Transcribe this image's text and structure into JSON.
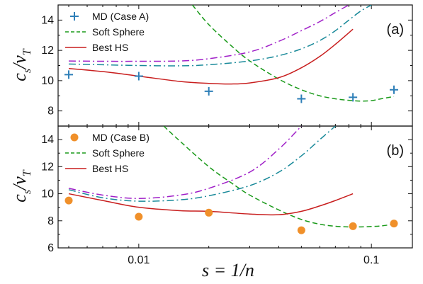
{
  "colors": {
    "md_a": "#2e7fb8",
    "md_b": "#f0902a",
    "soft_sphere": "#1a9a1a",
    "best_hs": "#c81e1e",
    "purple_dashdot": "#a020c8",
    "teal_dashdot": "#1a8a9a"
  },
  "chart_data": [
    {
      "type": "line",
      "panel_label": "(a)",
      "xscale": "log",
      "xlim": [
        0.0045,
        0.15
      ],
      "ylim": [
        7,
        15
      ],
      "yticks": [
        8,
        10,
        12,
        14
      ],
      "grid": false,
      "legend_position": "top-left",
      "ylabel_main": "c",
      "ylabel_sub1": "s",
      "ylabel_mid": "/v",
      "ylabel_sub2": "T",
      "series": [
        {
          "name": "MD (Case A)",
          "style": "plus",
          "color_key": "md_a",
          "x": [
            0.005,
            0.01,
            0.02,
            0.05,
            0.0833,
            0.125
          ],
          "y": [
            10.4,
            10.3,
            9.3,
            8.8,
            8.9,
            9.4
          ]
        },
        {
          "name": "Soft Sphere",
          "style": "dashed",
          "color_key": "soft_sphere",
          "x": [
            0.017,
            0.02,
            0.025,
            0.03,
            0.04,
            0.05,
            0.06,
            0.07,
            0.08,
            0.09,
            0.1,
            0.11,
            0.125
          ],
          "y": [
            15.0,
            13.7,
            12.3,
            11.3,
            10.1,
            9.4,
            9.0,
            8.8,
            8.7,
            8.65,
            8.68,
            8.8,
            8.95
          ]
        },
        {
          "name": "Best HS",
          "style": "solid",
          "color_key": "best_hs",
          "x": [
            0.005,
            0.007,
            0.01,
            0.015,
            0.02,
            0.025,
            0.03,
            0.04,
            0.05,
            0.06,
            0.07,
            0.0833
          ],
          "y": [
            10.8,
            10.6,
            10.3,
            9.95,
            9.82,
            9.78,
            9.85,
            10.2,
            10.85,
            11.6,
            12.4,
            13.4
          ]
        },
        {
          "name": "",
          "style": "dashdot",
          "color_key": "purple_dashdot",
          "x": [
            0.005,
            0.007,
            0.01,
            0.015,
            0.02,
            0.03,
            0.04,
            0.05,
            0.06,
            0.07,
            0.08
          ],
          "y": [
            11.3,
            11.28,
            11.28,
            11.3,
            11.45,
            11.9,
            12.6,
            13.3,
            13.9,
            14.5,
            15.0
          ]
        },
        {
          "name": "",
          "style": "dashdot",
          "color_key": "teal_dashdot",
          "x": [
            0.005,
            0.007,
            0.01,
            0.015,
            0.02,
            0.03,
            0.04,
            0.05,
            0.06,
            0.07,
            0.08,
            0.09,
            0.1
          ],
          "y": [
            11.1,
            11.05,
            11.0,
            10.98,
            11.05,
            11.3,
            11.65,
            12.1,
            12.65,
            13.3,
            14.0,
            14.6,
            15.0
          ]
        }
      ]
    },
    {
      "type": "line",
      "panel_label": "(b)",
      "xscale": "log",
      "xlim": [
        0.0045,
        0.15
      ],
      "ylim": [
        6,
        15
      ],
      "yticks": [
        6,
        8,
        10,
        12,
        14
      ],
      "xticks": [
        0.01,
        0.1
      ],
      "xtick_labels": [
        "0.01",
        "0.1"
      ],
      "grid": false,
      "legend_position": "top-left",
      "xlabel": "s = 1/n",
      "ylabel_main": "c",
      "ylabel_sub1": "s",
      "ylabel_mid": "/v",
      "ylabel_sub2": "T",
      "series": [
        {
          "name": "MD (Case B)",
          "style": "circle",
          "color_key": "md_b",
          "x": [
            0.005,
            0.01,
            0.02,
            0.05,
            0.0833,
            0.125
          ],
          "y": [
            9.5,
            8.3,
            8.6,
            7.3,
            7.6,
            7.8
          ]
        },
        {
          "name": "Soft Sphere",
          "style": "dashed",
          "color_key": "soft_sphere",
          "x": [
            0.0128,
            0.015,
            0.02,
            0.025,
            0.03,
            0.04,
            0.05,
            0.06,
            0.07,
            0.08,
            0.09,
            0.1,
            0.11,
            0.125
          ],
          "y": [
            15.0,
            13.9,
            12.0,
            10.8,
            9.9,
            8.8,
            8.1,
            7.75,
            7.6,
            7.55,
            7.55,
            7.58,
            7.62,
            7.75
          ]
        },
        {
          "name": "Best HS",
          "style": "solid",
          "color_key": "best_hs",
          "x": [
            0.005,
            0.007,
            0.01,
            0.015,
            0.02,
            0.03,
            0.04,
            0.05,
            0.06,
            0.07,
            0.0833
          ],
          "y": [
            10.0,
            9.5,
            9.0,
            8.75,
            8.7,
            8.5,
            8.45,
            8.7,
            9.1,
            9.5,
            10.0
          ]
        },
        {
          "name": "",
          "style": "dashdot",
          "color_key": "purple_dashdot",
          "x": [
            0.005,
            0.007,
            0.01,
            0.015,
            0.02,
            0.03,
            0.04,
            0.05
          ],
          "y": [
            10.4,
            9.9,
            9.65,
            9.9,
            10.4,
            11.6,
            13.3,
            15.0
          ]
        },
        {
          "name": "",
          "style": "dashdot",
          "color_key": "teal_dashdot",
          "x": [
            0.005,
            0.007,
            0.01,
            0.015,
            0.02,
            0.03,
            0.04,
            0.05,
            0.06,
            0.07
          ],
          "y": [
            10.3,
            9.7,
            9.45,
            9.55,
            9.85,
            10.6,
            11.6,
            12.8,
            14.0,
            15.0
          ]
        }
      ]
    }
  ]
}
